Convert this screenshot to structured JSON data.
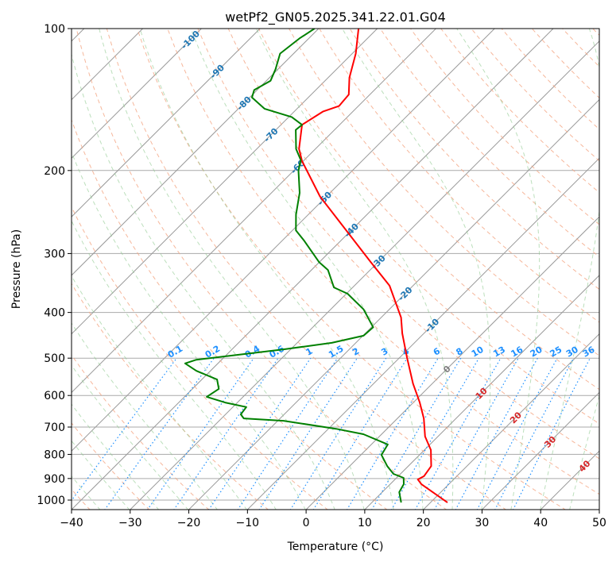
{
  "chart_data": {
    "type": "line",
    "subtype": "skew-t log-p",
    "title": "wetPf2_GN05.2025.341.22.01.G04",
    "xlabel": "Temperature (°C)",
    "ylabel": "Pressure (hPa)",
    "xlim": [
      -40,
      50
    ],
    "ylim": [
      1050,
      100
    ],
    "x_ticks": [
      "−40",
      "−30",
      "−20",
      "−10",
      "0",
      "10",
      "20",
      "30",
      "40",
      "50"
    ],
    "x_tick_values": [
      -40,
      -30,
      -20,
      -10,
      0,
      10,
      20,
      30,
      40,
      50
    ],
    "y_ticks": [
      "100",
      "200",
      "300",
      "400",
      "500",
      "600",
      "700",
      "800",
      "900",
      "1000"
    ],
    "y_tick_values": [
      100,
      200,
      300,
      400,
      500,
      600,
      700,
      800,
      900,
      1000
    ],
    "grid": true,
    "isotherm_labels": [
      {
        "t": -100,
        "label": "-100",
        "color": "#1f77b4"
      },
      {
        "t": -90,
        "label": "-90",
        "color": "#1f77b4"
      },
      {
        "t": -80,
        "label": "-80",
        "color": "#1f77b4"
      },
      {
        "t": -70,
        "label": "-70",
        "color": "#1f77b4"
      },
      {
        "t": -60,
        "label": "-60",
        "color": "#1f77b4"
      },
      {
        "t": -50,
        "label": "-50",
        "color": "#1f77b4"
      },
      {
        "t": -40,
        "label": "-40",
        "color": "#1f77b4"
      },
      {
        "t": -30,
        "label": "-30",
        "color": "#1f77b4"
      },
      {
        "t": -20,
        "label": "-20",
        "color": "#1f77b4"
      },
      {
        "t": -10,
        "label": "-10",
        "color": "#1f77b4"
      },
      {
        "t": 0,
        "label": "0",
        "color": "#808080"
      },
      {
        "t": 10,
        "label": "10",
        "color": "#d62728"
      },
      {
        "t": 20,
        "label": "20",
        "color": "#d62728"
      },
      {
        "t": 30,
        "label": "30",
        "color": "#d62728"
      },
      {
        "t": 40,
        "label": "40",
        "color": "#d62728"
      }
    ],
    "mixing_ratios": [
      0.1,
      0.2,
      0.4,
      0.6,
      1,
      1.5,
      2,
      3,
      4,
      6,
      8,
      10,
      13,
      16,
      20,
      25,
      30,
      36
    ],
    "mixing_ratio_labels": [
      "0.1",
      "0.2",
      "0.4",
      "0.6",
      "1",
      "1.5",
      "2",
      "3",
      "4",
      "6",
      "8",
      "10",
      "13",
      "16",
      "20",
      "25",
      "30",
      "36"
    ],
    "series": [
      {
        "name": "temperature",
        "color": "#ff0000",
        "points": [
          [
            100,
            -73.2
          ],
          [
            113,
            -69.4
          ],
          [
            127,
            -66.4
          ],
          [
            138,
            -63.6
          ],
          [
            146,
            -63.3
          ],
          [
            150,
            -65.1
          ],
          [
            160,
            -66.4
          ],
          [
            180,
            -62.8
          ],
          [
            191,
            -60.2
          ],
          [
            227,
            -51.1
          ],
          [
            313,
            -31.2
          ],
          [
            351,
            -24.0
          ],
          [
            410,
            -16.6
          ],
          [
            443,
            -13.7
          ],
          [
            498,
            -8.8
          ],
          [
            566,
            -3.3
          ],
          [
            621,
            1.1
          ],
          [
            671,
            4.5
          ],
          [
            733,
            7.8
          ],
          [
            783,
            11.1
          ],
          [
            847,
            13.9
          ],
          [
            890,
            14.4
          ],
          [
            904,
            13.9
          ],
          [
            925,
            15.3
          ],
          [
            1012,
            22.9
          ]
        ]
      },
      {
        "name": "dewpoint",
        "color": "#008000",
        "points": [
          [
            100,
            -80.7
          ],
          [
            105,
            -81.6
          ],
          [
            113,
            -82.3
          ],
          [
            122,
            -80.4
          ],
          [
            129,
            -79.3
          ],
          [
            135,
            -80.5
          ],
          [
            140,
            -79.6
          ],
          [
            148,
            -75.5
          ],
          [
            154,
            -69.5
          ],
          [
            160,
            -66.4
          ],
          [
            164,
            -66.6
          ],
          [
            180,
            -63.3
          ],
          [
            190,
            -60.6
          ],
          [
            200,
            -59.2
          ],
          [
            223,
            -55.2
          ],
          [
            248,
            -52.1
          ],
          [
            268,
            -49.4
          ],
          [
            282,
            -46.2
          ],
          [
            313,
            -40.0
          ],
          [
            325,
            -37.2
          ],
          [
            354,
            -33.2
          ],
          [
            365,
            -29.8
          ],
          [
            394,
            -24.4
          ],
          [
            430,
            -19.7
          ],
          [
            448,
            -19.9
          ],
          [
            464,
            -24.1
          ],
          [
            479,
            -31.2
          ],
          [
            494,
            -39.2
          ],
          [
            504,
            -44.3
          ],
          [
            513,
            -45.6
          ],
          [
            532,
            -42.4
          ],
          [
            555,
            -37.4
          ],
          [
            581,
            -35.5
          ],
          [
            604,
            -36.2
          ],
          [
            621,
            -32.1
          ],
          [
            635,
            -27.7
          ],
          [
            658,
            -27.4
          ],
          [
            671,
            -26.2
          ],
          [
            679,
            -19.0
          ],
          [
            706,
            -8.7
          ],
          [
            725,
            -3.1
          ],
          [
            762,
            2.8
          ],
          [
            802,
            3.5
          ],
          [
            847,
            6.4
          ],
          [
            880,
            8.8
          ],
          [
            897,
            11.2
          ],
          [
            925,
            12.3
          ],
          [
            962,
            12.9
          ],
          [
            1012,
            15.0
          ]
        ]
      }
    ]
  }
}
